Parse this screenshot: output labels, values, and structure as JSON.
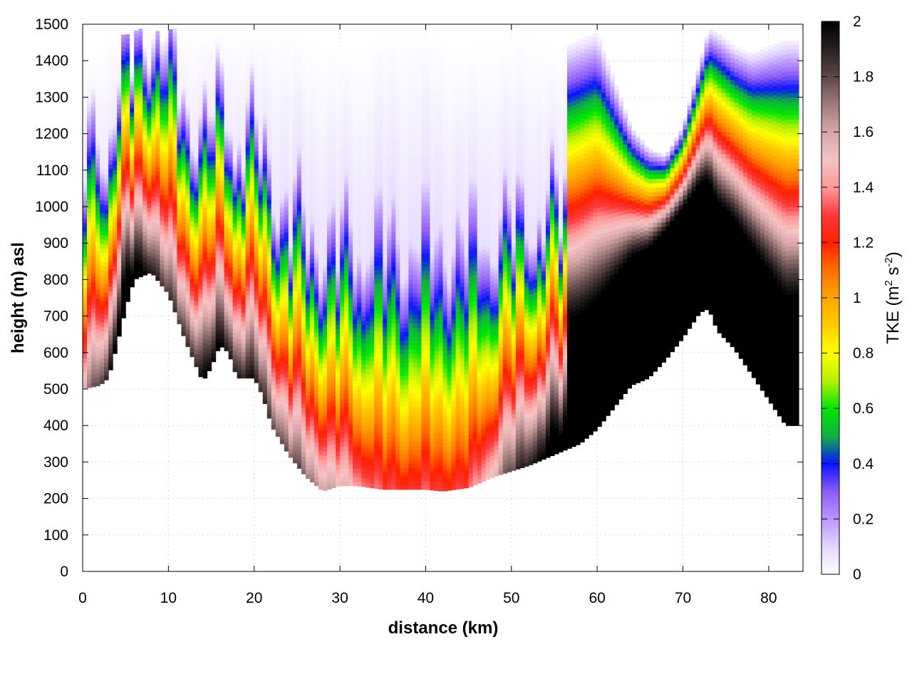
{
  "chart_data": {
    "type": "heatmap",
    "xlabel": "distance (km)",
    "ylabel": "height (m) asl",
    "xlim": [
      0,
      84
    ],
    "ylim": [
      0,
      1500
    ],
    "x_ticks": [
      "0",
      "10",
      "20",
      "30",
      "40",
      "50",
      "60",
      "70",
      "80"
    ],
    "y_ticks": [
      "0",
      "100",
      "200",
      "300",
      "400",
      "500",
      "600",
      "700",
      "800",
      "900",
      "1000",
      "1100",
      "1200",
      "1300",
      "1400",
      "1500"
    ],
    "grid": true,
    "colorbar": {
      "label_main": "TKE (m",
      "label_sup1": "2",
      "label_mid": " s",
      "label_sup2": "-2",
      "label_end": ")",
      "range": [
        0,
        2
      ],
      "ticks": [
        "0",
        "0.2",
        "0.4",
        "0.6",
        "0.8",
        "1",
        "1.2",
        "1.4",
        "1.6",
        "1.8",
        "2"
      ],
      "stops": [
        {
          "v": 0.0,
          "c": "#ffffff"
        },
        {
          "v": 0.1,
          "c": "#e4d6ff"
        },
        {
          "v": 0.2,
          "c": "#b996ff"
        },
        {
          "v": 0.3,
          "c": "#8a5cf5"
        },
        {
          "v": 0.4,
          "c": "#0a14ff"
        },
        {
          "v": 0.5,
          "c": "#10b040"
        },
        {
          "v": 0.6,
          "c": "#00e800"
        },
        {
          "v": 0.7,
          "c": "#b6f000"
        },
        {
          "v": 0.8,
          "c": "#ffff00"
        },
        {
          "v": 0.9,
          "c": "#ffcc00"
        },
        {
          "v": 1.0,
          "c": "#ffa500"
        },
        {
          "v": 1.1,
          "c": "#ff7000"
        },
        {
          "v": 1.2,
          "c": "#ff2000"
        },
        {
          "v": 1.3,
          "c": "#ff3a3a"
        },
        {
          "v": 1.4,
          "c": "#ff9a9a"
        },
        {
          "v": 1.5,
          "c": "#f4c4c4"
        },
        {
          "v": 1.6,
          "c": "#d8a8a8"
        },
        {
          "v": 1.7,
          "c": "#9e7a7a"
        },
        {
          "v": 1.8,
          "c": "#5e4848"
        },
        {
          "v": 1.9,
          "c": "#282020"
        },
        {
          "v": 2.0,
          "c": "#000000"
        }
      ]
    },
    "terrain": {
      "x": [
        0,
        2,
        3,
        4,
        5,
        6,
        8,
        10,
        12,
        14,
        15,
        16,
        17,
        18,
        20,
        21,
        22,
        24,
        26,
        28,
        30,
        32,
        35,
        40,
        42,
        45,
        48,
        52,
        56,
        58,
        60,
        62,
        64,
        66,
        68,
        70,
        72,
        73,
        74,
        76,
        78,
        80,
        82,
        83
      ],
      "y": [
        500,
        510,
        530,
        620,
        720,
        800,
        820,
        760,
        630,
        520,
        560,
        620,
        600,
        530,
        530,
        480,
        400,
        320,
        260,
        220,
        235,
        235,
        225,
        225,
        220,
        230,
        260,
        290,
        330,
        350,
        390,
        450,
        510,
        530,
        580,
        640,
        710,
        720,
        660,
        610,
        540,
        470,
        400,
        400
      ]
    },
    "top": {
      "x": [
        0,
        2,
        3,
        5,
        7,
        9,
        11,
        13,
        15,
        17,
        20,
        25,
        27,
        28,
        30,
        33,
        35,
        38,
        41,
        43,
        45,
        48,
        50,
        52,
        55,
        56,
        58,
        60,
        62,
        64,
        66,
        68,
        70,
        72,
        73,
        74,
        76,
        78,
        80,
        82,
        83
      ],
      "y": [
        1400,
        1420,
        1480,
        1470,
        1490,
        1480,
        1490,
        1480,
        1490,
        1490,
        1490,
        1490,
        1440,
        1430,
        1430,
        1430,
        1490,
        1490,
        1490,
        1420,
        1430,
        1450,
        1460,
        1480,
        1430,
        1440,
        1460,
        1480,
        1350,
        1220,
        1160,
        1140,
        1220,
        1400,
        1490,
        1480,
        1440,
        1420,
        1440,
        1460,
        1460
      ]
    },
    "profiles": {
      "base_tke_at_ground": [
        {
          "x": 0,
          "v": 1.4
        },
        {
          "x": 5,
          "v": 2.0
        },
        {
          "x": 10,
          "v": 1.6
        },
        {
          "x": 15,
          "v": 1.8
        },
        {
          "x": 20,
          "v": 1.7
        },
        {
          "x": 27,
          "v": 1.5
        },
        {
          "x": 35,
          "v": 1.1
        },
        {
          "x": 45,
          "v": 1.1
        },
        {
          "x": 50,
          "v": 1.6
        },
        {
          "x": 56,
          "v": 2.0
        },
        {
          "x": 83,
          "v": 2.0
        }
      ]
    }
  }
}
